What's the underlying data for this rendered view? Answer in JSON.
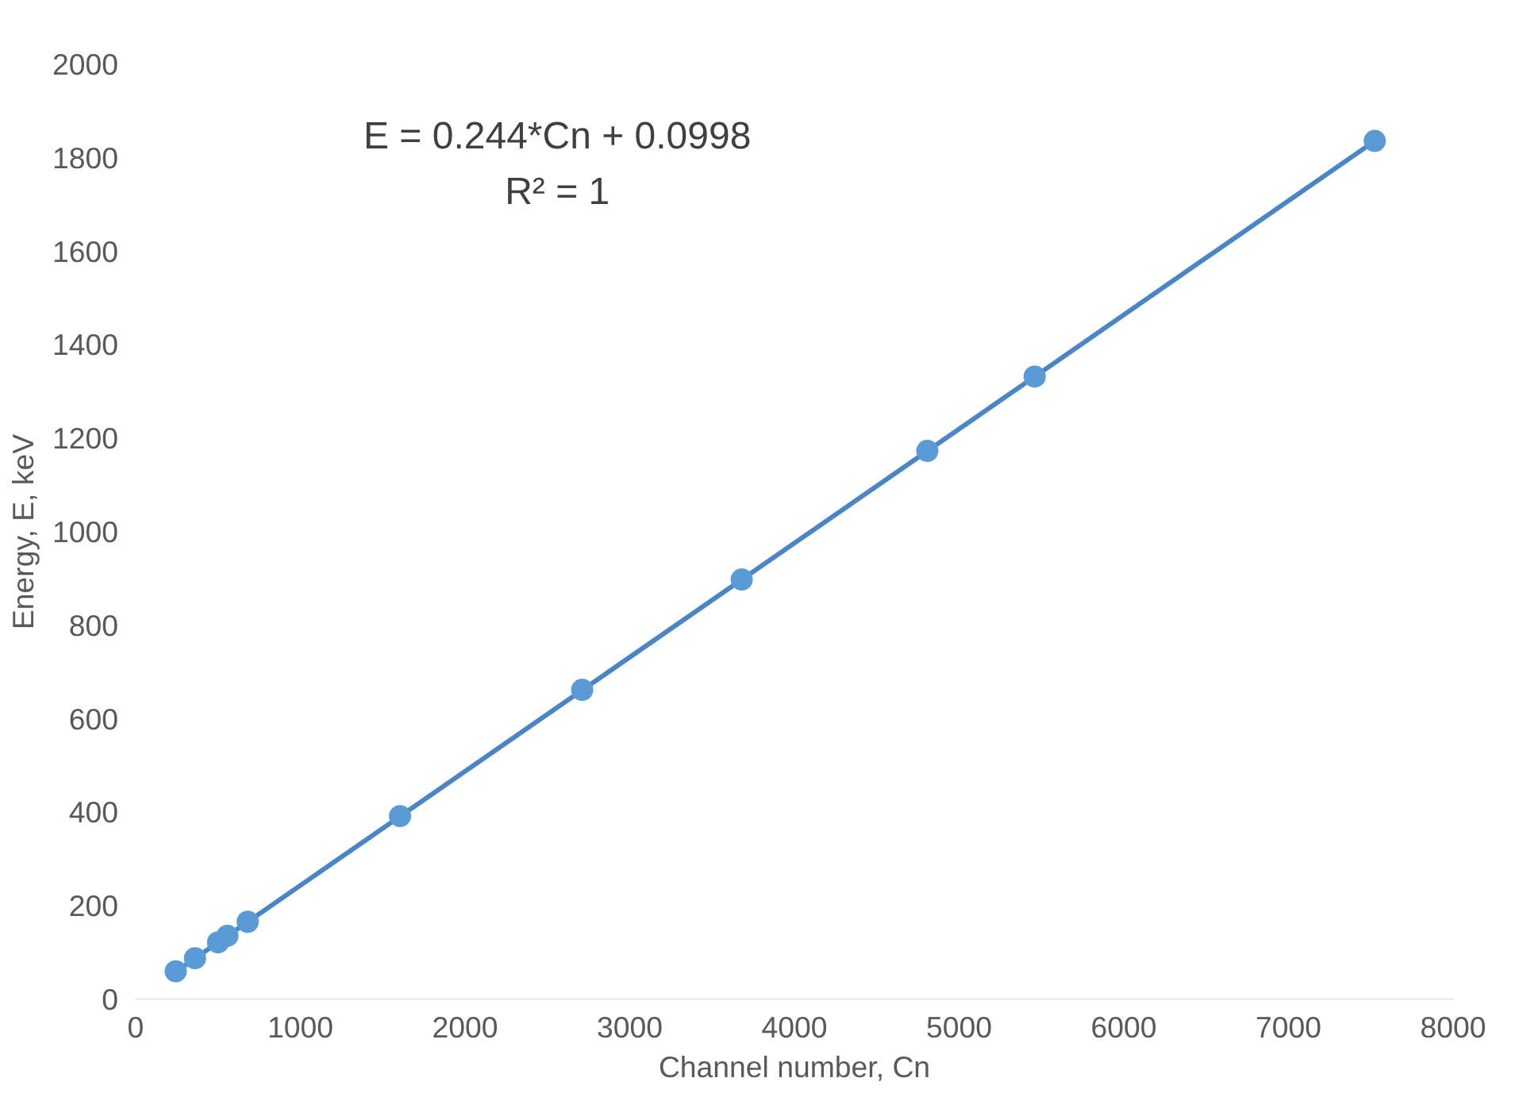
{
  "chart_data": {
    "type": "scatter",
    "xlabel": "Channel number, Cn",
    "ylabel": "Energy, E, keV",
    "xlim": [
      0,
      8000
    ],
    "ylim": [
      0,
      2000
    ],
    "xticks": [
      0,
      1000,
      2000,
      3000,
      4000,
      5000,
      6000,
      7000,
      8000
    ],
    "yticks": [
      0,
      200,
      400,
      600,
      800,
      1000,
      1200,
      1400,
      1600,
      1800,
      2000
    ],
    "grid": false,
    "marker": "circle",
    "annotations": [
      "E = 0.244*Cn + 0.0998",
      "R² = 1"
    ],
    "series": [
      {
        "type": "line",
        "marker": "none",
        "color": "#4a86c5",
        "x": [
          243,
          7524
        ],
        "values": [
          59,
          1836
        ]
      },
      {
        "color": "#5b9bd5",
        "x": [
          243,
          360,
          500,
          557,
          680,
          1605,
          2711,
          3680,
          4807,
          5459,
          7524
        ],
        "values": [
          60,
          88,
          122,
          136,
          166,
          392,
          662,
          898,
          1173,
          1332,
          1836
        ]
      }
    ]
  }
}
